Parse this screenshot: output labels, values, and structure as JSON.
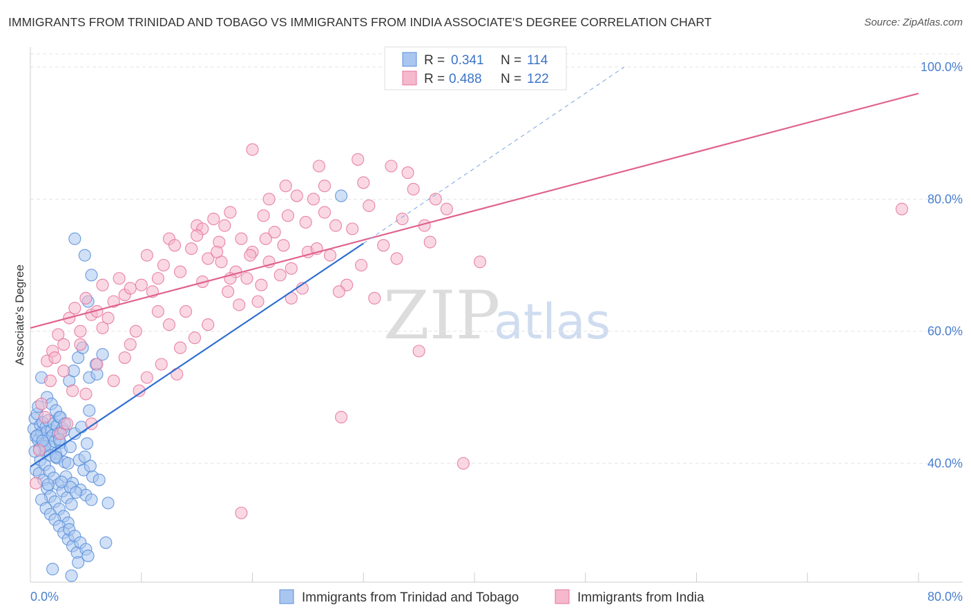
{
  "header": {
    "title": "IMMIGRANTS FROM TRINIDAD AND TOBAGO VS IMMIGRANTS FROM INDIA ASSOCIATE'S DEGREE CORRELATION CHART",
    "source": "Source: ZipAtlas.com"
  },
  "watermark": {
    "part1": "ZIP",
    "part2": "atlas"
  },
  "legend": {
    "r_label": "R =",
    "n_label": "N =",
    "entries": [
      {
        "r": "0.341",
        "n": "114"
      },
      {
        "r": "0.488",
        "n": "122"
      }
    ]
  },
  "chart_data": {
    "type": "scatter",
    "title": "IMMIGRANTS FROM TRINIDAD AND TOBAGO VS IMMIGRANTS FROM INDIA ASSOCIATE'S DEGREE CORRELATION CHART",
    "xlabel": "",
    "ylabel": "Associate's Degree",
    "xlim": [
      0,
      80
    ],
    "ylim": [
      20,
      105
    ],
    "x_tick_labels": [
      "0.0%",
      "80.0%"
    ],
    "y_ticks": [
      40,
      60,
      80,
      100
    ],
    "y_tick_labels": [
      "40.0%",
      "60.0%",
      "80.0%",
      "100.0%"
    ],
    "grid": true,
    "legend_position": "top-center",
    "series": [
      {
        "name": "Immigrants from Trinidad and Tobago",
        "color": "#5b8fd8",
        "fill": "#a9c6f0",
        "r": 0.341,
        "n": 114,
        "trend": {
          "x0": 0,
          "y0": 39.5,
          "x1": 30,
          "y1": 73.3
        },
        "trend_ext": {
          "x0": 30,
          "y0": 73.3,
          "x1": 53.5,
          "y1": 100
        },
        "points": [
          [
            0.3,
            45.2
          ],
          [
            0.4,
            46.8
          ],
          [
            0.5,
            44.0
          ],
          [
            0.6,
            47.5
          ],
          [
            0.7,
            43.5
          ],
          [
            0.8,
            42.2
          ],
          [
            0.9,
            45.8
          ],
          [
            1.0,
            44.6
          ],
          [
            1.1,
            46.2
          ],
          [
            1.2,
            43.0
          ],
          [
            1.3,
            41.8
          ],
          [
            1.4,
            45.5
          ],
          [
            1.5,
            44.8
          ],
          [
            1.6,
            46.5
          ],
          [
            1.7,
            43.8
          ],
          [
            1.8,
            42.6
          ],
          [
            1.9,
            45.0
          ],
          [
            2.0,
            44.2
          ],
          [
            2.1,
            46.0
          ],
          [
            2.2,
            43.3
          ],
          [
            2.3,
            41.5
          ],
          [
            2.4,
            45.7
          ],
          [
            2.5,
            44.5
          ],
          [
            2.6,
            47.0
          ],
          [
            2.7,
            43.1
          ],
          [
            2.8,
            42.0
          ],
          [
            2.9,
            45.3
          ],
          [
            3.0,
            44.9
          ],
          [
            0.5,
            39.0
          ],
          [
            0.8,
            38.5
          ],
          [
            1.2,
            37.5
          ],
          [
            1.5,
            36.2
          ],
          [
            1.8,
            35.0
          ],
          [
            2.2,
            34.2
          ],
          [
            2.6,
            33.1
          ],
          [
            3.0,
            32.0
          ],
          [
            3.4,
            31.0
          ],
          [
            0.9,
            40.5
          ],
          [
            1.3,
            39.8
          ],
          [
            1.7,
            38.8
          ],
          [
            2.1,
            37.8
          ],
          [
            2.5,
            36.8
          ],
          [
            2.9,
            35.8
          ],
          [
            3.3,
            34.8
          ],
          [
            3.7,
            33.8
          ],
          [
            1.0,
            34.5
          ],
          [
            1.4,
            33.2
          ],
          [
            1.8,
            32.3
          ],
          [
            2.2,
            31.5
          ],
          [
            2.6,
            30.5
          ],
          [
            3.0,
            29.5
          ],
          [
            3.4,
            28.5
          ],
          [
            3.8,
            27.5
          ],
          [
            4.2,
            26.5
          ],
          [
            1.5,
            50.0
          ],
          [
            1.9,
            49.0
          ],
          [
            2.3,
            48.0
          ],
          [
            2.7,
            47.0
          ],
          [
            3.1,
            46.0
          ],
          [
            3.5,
            52.5
          ],
          [
            3.9,
            54.0
          ],
          [
            4.3,
            56.0
          ],
          [
            4.7,
            57.5
          ],
          [
            5.3,
            53.0
          ],
          [
            5.9,
            55.0
          ],
          [
            6.5,
            56.5
          ],
          [
            4.0,
            44.5
          ],
          [
            4.6,
            45.5
          ],
          [
            5.1,
            43.0
          ],
          [
            3.6,
            42.5
          ],
          [
            4.4,
            40.5
          ],
          [
            4.8,
            39.0
          ],
          [
            5.6,
            38.0
          ],
          [
            6.2,
            37.5
          ],
          [
            3.2,
            38.0
          ],
          [
            3.8,
            37.0
          ],
          [
            4.5,
            36.0
          ],
          [
            5.0,
            35.2
          ],
          [
            5.5,
            34.5
          ],
          [
            7.0,
            34.0
          ],
          [
            3.5,
            30.0
          ],
          [
            4.0,
            29.0
          ],
          [
            4.5,
            28.0
          ],
          [
            5.0,
            27.0
          ],
          [
            6.8,
            28.0
          ],
          [
            2.0,
            24.0
          ],
          [
            3.7,
            23.0
          ],
          [
            4.3,
            25.0
          ],
          [
            5.2,
            26.0
          ],
          [
            1.0,
            53.0
          ],
          [
            1.3,
            42.6
          ],
          [
            1.8,
            41.2
          ],
          [
            2.4,
            40.8
          ],
          [
            3.1,
            40.2
          ],
          [
            4.9,
            41.0
          ],
          [
            5.4,
            39.6
          ],
          [
            3.6,
            36.4
          ],
          [
            2.8,
            37.2
          ],
          [
            4.1,
            35.6
          ],
          [
            1.6,
            36.8
          ],
          [
            5.3,
            48.0
          ],
          [
            3.4,
            40.0
          ],
          [
            6.0,
            53.5
          ],
          [
            5.2,
            64.5
          ],
          [
            5.5,
            68.5
          ],
          [
            4.9,
            71.5
          ],
          [
            4.0,
            74.0
          ],
          [
            28.0,
            80.5
          ],
          [
            2.6,
            43.6
          ],
          [
            0.6,
            44.2
          ],
          [
            0.4,
            41.8
          ],
          [
            0.7,
            48.6
          ],
          [
            1.1,
            43.4
          ],
          [
            2.3,
            41.0
          ]
        ]
      },
      {
        "name": "Immigrants from India",
        "color": "#e5759d",
        "fill": "#f5b8cc",
        "r": 0.488,
        "n": 122,
        "trend": {
          "x0": 0,
          "y0": 60.5,
          "x1": 80,
          "y1": 96.0
        },
        "points": [
          [
            0.5,
            37.0
          ],
          [
            1.0,
            49.0
          ],
          [
            1.5,
            55.5
          ],
          [
            2.0,
            57.0
          ],
          [
            2.5,
            59.5
          ],
          [
            3.0,
            58.0
          ],
          [
            3.5,
            62.0
          ],
          [
            4.0,
            63.5
          ],
          [
            4.5,
            60.0
          ],
          [
            5.0,
            65.0
          ],
          [
            5.5,
            62.5
          ],
          [
            6.0,
            63.0
          ],
          [
            6.5,
            67.0
          ],
          [
            7.0,
            62.0
          ],
          [
            7.5,
            64.5
          ],
          [
            8.0,
            68.0
          ],
          [
            8.5,
            65.5
          ],
          [
            9.0,
            66.5
          ],
          [
            9.5,
            60.0
          ],
          [
            10.0,
            67.0
          ],
          [
            10.5,
            71.5
          ],
          [
            11.0,
            66.0
          ],
          [
            11.5,
            68.0
          ],
          [
            12.0,
            70.0
          ],
          [
            12.5,
            74.0
          ],
          [
            13.0,
            73.0
          ],
          [
            13.5,
            69.0
          ],
          [
            14.0,
            63.0
          ],
          [
            14.5,
            72.5
          ],
          [
            15.0,
            76.0
          ],
          [
            15.5,
            75.5
          ],
          [
            16.0,
            71.0
          ],
          [
            16.5,
            77.0
          ],
          [
            17.0,
            73.5
          ],
          [
            17.5,
            76.0
          ],
          [
            18.0,
            78.0
          ],
          [
            18.5,
            69.0
          ],
          [
            19.0,
            74.0
          ],
          [
            19.5,
            68.0
          ],
          [
            20.0,
            72.0
          ],
          [
            20.5,
            64.5
          ],
          [
            21.0,
            77.5
          ],
          [
            21.5,
            80.0
          ],
          [
            22.0,
            75.0
          ],
          [
            22.5,
            68.5
          ],
          [
            23.0,
            82.0
          ],
          [
            23.5,
            69.5
          ],
          [
            24.0,
            80.5
          ],
          [
            24.5,
            66.5
          ],
          [
            25.0,
            72.0
          ],
          [
            25.5,
            80.0
          ],
          [
            26.0,
            85.0
          ],
          [
            26.5,
            82.0
          ],
          [
            27.0,
            71.5
          ],
          [
            27.5,
            76.0
          ],
          [
            28.5,
            67.0
          ],
          [
            29.0,
            75.5
          ],
          [
            29.5,
            86.0
          ],
          [
            30.0,
            82.5
          ],
          [
            30.5,
            79.0
          ],
          [
            31.0,
            65.0
          ],
          [
            32.5,
            85.0
          ],
          [
            33.5,
            77.0
          ],
          [
            34.5,
            81.5
          ],
          [
            35.5,
            76.0
          ],
          [
            36.0,
            73.5
          ],
          [
            36.5,
            80.0
          ],
          [
            37.5,
            78.5
          ],
          [
            34.0,
            84.0
          ],
          [
            35.0,
            57.0
          ],
          [
            28.0,
            47.0
          ],
          [
            19.0,
            32.5
          ],
          [
            20.0,
            87.5
          ],
          [
            40.5,
            70.5
          ],
          [
            39.0,
            40.0
          ],
          [
            3.0,
            54.0
          ],
          [
            4.5,
            58.0
          ],
          [
            6.0,
            55.0
          ],
          [
            2.2,
            56.0
          ],
          [
            3.8,
            51.0
          ],
          [
            5.5,
            46.0
          ],
          [
            7.5,
            52.5
          ],
          [
            9.0,
            58.0
          ],
          [
            10.5,
            53.0
          ],
          [
            13.5,
            57.5
          ],
          [
            16.0,
            61.0
          ],
          [
            11.5,
            63.0
          ],
          [
            12.5,
            61.0
          ],
          [
            14.8,
            59.0
          ],
          [
            17.8,
            66.0
          ],
          [
            21.5,
            70.5
          ],
          [
            23.5,
            65.0
          ],
          [
            8.5,
            56.0
          ],
          [
            6.5,
            60.5
          ],
          [
            5.0,
            50.5
          ],
          [
            1.8,
            52.5
          ],
          [
            1.3,
            47.0
          ],
          [
            2.7,
            44.5
          ],
          [
            3.3,
            46.0
          ],
          [
            0.8,
            42.0
          ],
          [
            9.8,
            51.0
          ],
          [
            11.8,
            55.0
          ],
          [
            13.2,
            53.5
          ],
          [
            15.5,
            67.5
          ],
          [
            17.2,
            70.5
          ],
          [
            18.8,
            64.0
          ],
          [
            20.8,
            67.0
          ],
          [
            22.8,
            73.0
          ],
          [
            24.8,
            76.5
          ],
          [
            26.5,
            78.0
          ],
          [
            15.0,
            74.5
          ],
          [
            16.8,
            72.0
          ],
          [
            18.0,
            68.0
          ],
          [
            19.8,
            71.5
          ],
          [
            21.2,
            74.0
          ],
          [
            23.2,
            77.5
          ],
          [
            25.8,
            72.5
          ],
          [
            27.8,
            66.0
          ],
          [
            29.8,
            70.0
          ],
          [
            31.8,
            73.0
          ],
          [
            78.5,
            78.5
          ],
          [
            33.0,
            71.0
          ]
        ]
      }
    ]
  },
  "bottom_legend": [
    {
      "label": "Immigrants from Trinidad and Tobago"
    },
    {
      "label": "Immigrants from India"
    }
  ]
}
